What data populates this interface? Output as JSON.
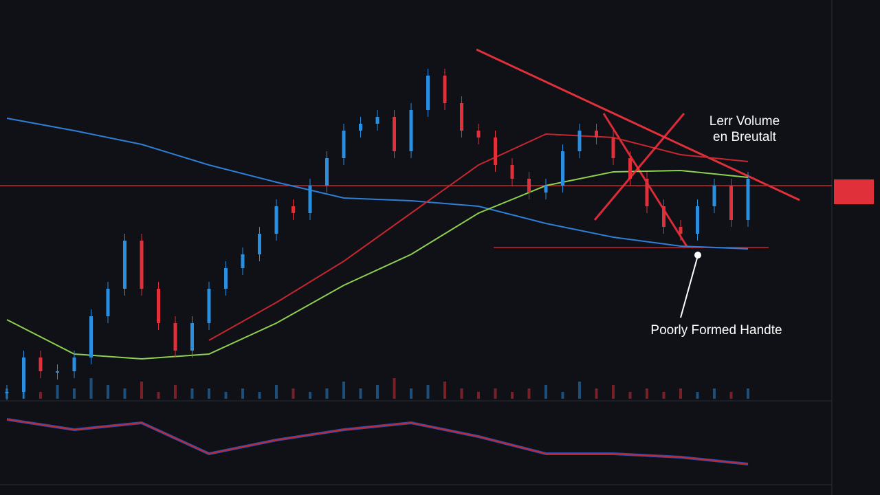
{
  "chart": {
    "annotations": [
      "Lerr Volume",
      "en Breutalt",
      "Poorly Formed Handte"
    ],
    "closes": [
      6,
      16,
      12,
      12,
      16,
      28,
      36,
      50,
      36,
      26,
      18,
      26,
      36,
      42,
      46,
      52,
      60,
      58,
      66,
      74,
      82,
      84,
      86,
      76,
      88,
      98,
      90,
      82,
      80,
      72,
      68,
      64,
      66,
      76,
      82,
      80,
      74,
      68,
      60,
      54,
      52,
      60,
      66,
      56,
      68
    ],
    "volume": [
      3,
      5,
      2,
      4,
      3,
      6,
      4,
      3,
      5,
      2,
      4,
      3,
      3,
      2,
      3,
      2,
      4,
      3,
      2,
      3,
      5,
      3,
      4,
      6,
      3,
      4,
      5,
      3,
      2,
      3,
      2,
      3,
      4,
      2,
      5,
      3,
      4,
      2,
      3,
      2,
      3,
      2,
      3,
      2,
      3
    ],
    "averages": [
      {
        "color": "#2f7fd8",
        "values": [
          85.6,
          82,
          78,
          72,
          67,
          62.4,
          61.6,
          60,
          55,
          51,
          48.4,
          47.6
        ]
      },
      {
        "color": "#c8262e",
        "values": [
          null,
          null,
          null,
          21,
          32,
          44,
          58,
          72,
          81,
          80,
          75,
          73
        ]
      },
      {
        "color": "#8fd14f",
        "values": [
          27,
          17,
          15.6,
          17,
          26,
          37,
          46,
          58,
          66,
          70,
          70.4,
          68.4
        ]
      }
    ],
    "oscillator": [
      9,
      7.5,
      8.5,
      4,
      6,
      7.5,
      8.5,
      6.5,
      4,
      4,
      3.5,
      2.5
    ],
    "resistance": 66,
    "support": 48,
    "up_color": "#2a8fe0",
    "down_color": "#e0303a"
  }
}
